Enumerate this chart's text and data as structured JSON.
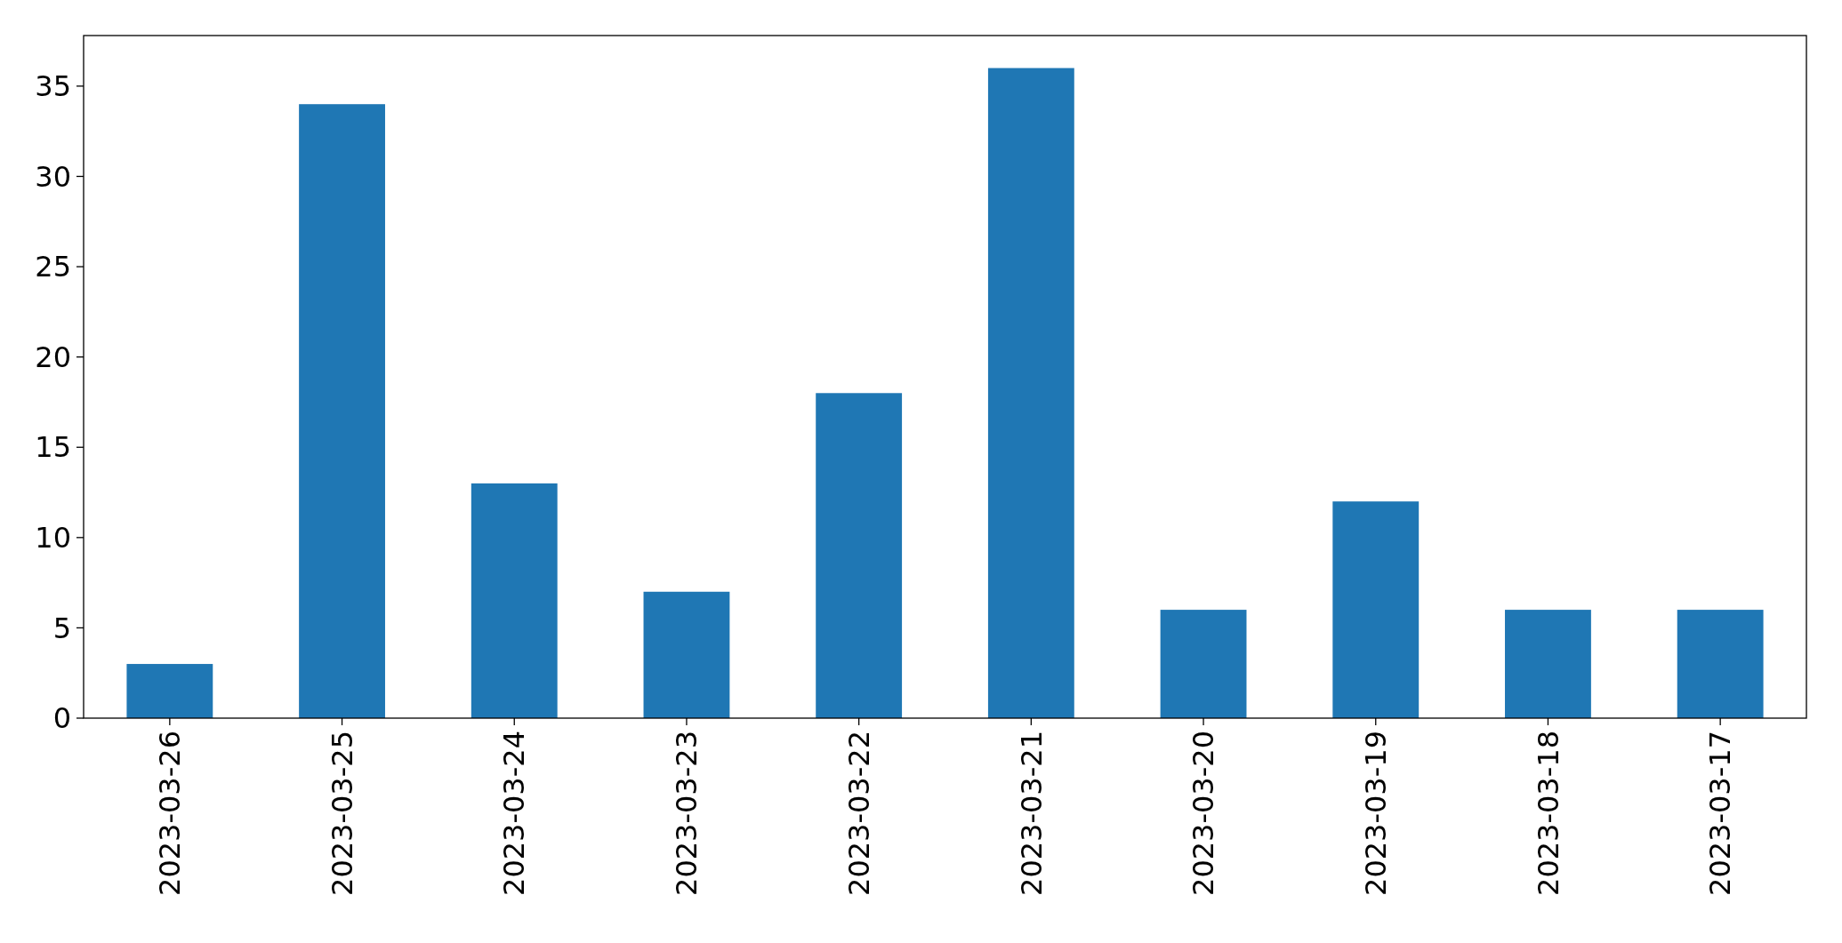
{
  "chart_data": {
    "type": "bar",
    "categories": [
      "2023-03-26",
      "2023-03-25",
      "2023-03-24",
      "2023-03-23",
      "2023-03-22",
      "2023-03-21",
      "2023-03-20",
      "2023-03-19",
      "2023-03-18",
      "2023-03-17"
    ],
    "values": [
      3,
      34,
      13,
      7,
      18,
      36,
      6,
      12,
      6,
      6
    ],
    "color": "#1f77b4",
    "ylim": [
      0,
      37.8
    ],
    "yticks": [
      0,
      5,
      10,
      15,
      20,
      25,
      30,
      35
    ]
  }
}
